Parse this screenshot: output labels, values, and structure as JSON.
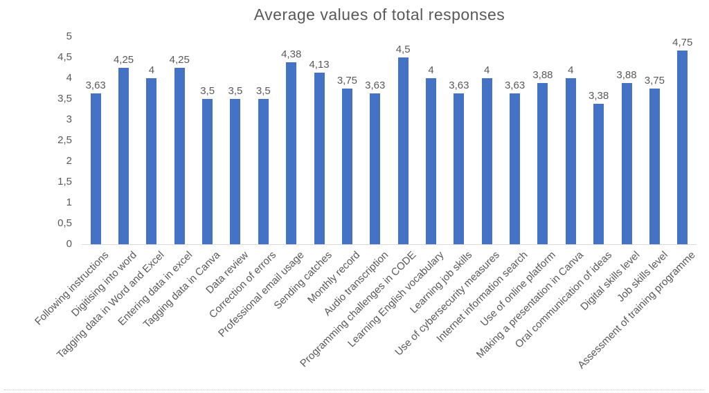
{
  "chart_data": {
    "type": "bar",
    "title": "Average values of total responses",
    "categories": [
      "Following instructions",
      "Digitising into word",
      "Tagging data in Word and Excel",
      "Entering data in excel",
      "Tagging data in Canva",
      "Data review",
      "Correction of errors",
      "Professional email usage",
      "Sending catches",
      "Monthly record",
      "Audio transcription",
      "Programming challenges in CODE",
      "Learning English vocabulary",
      "Learning job skills",
      "Use of cybersecurity measures",
      "Internet information search",
      "Use of online platform",
      "Making a presentation in Canva",
      "Oral communication of ideas",
      "Digital skills level",
      "Job skills level",
      "Assessment of training programme"
    ],
    "values": [
      3.63,
      4.25,
      4,
      4.25,
      3.5,
      3.5,
      3.5,
      4.38,
      4.13,
      3.75,
      3.63,
      4.5,
      4,
      3.63,
      4,
      3.63,
      3.88,
      4,
      3.38,
      3.88,
      3.75,
      4.75
    ],
    "value_labels": [
      "3,63",
      "4,25",
      "4",
      "4,25",
      "3,5",
      "3,5",
      "3,5",
      "4,38",
      "4,13",
      "3,75",
      "3,63",
      "4,5",
      "4",
      "3,63",
      "4",
      "3,63",
      "3,88",
      "4",
      "3,38",
      "3,88",
      "3,75",
      "4,75"
    ],
    "y_ticks": [
      "5",
      "4,5",
      "4",
      "3,5",
      "3",
      "2,5",
      "2",
      "1,5",
      "1",
      "0,5",
      "0"
    ],
    "ylim": [
      0,
      5
    ],
    "xlabel": "",
    "ylabel": "",
    "grid": false,
    "legend": false,
    "bar_color": "#4472C4",
    "text_color": "#595959",
    "baseline_color": "#d9d9d9"
  }
}
